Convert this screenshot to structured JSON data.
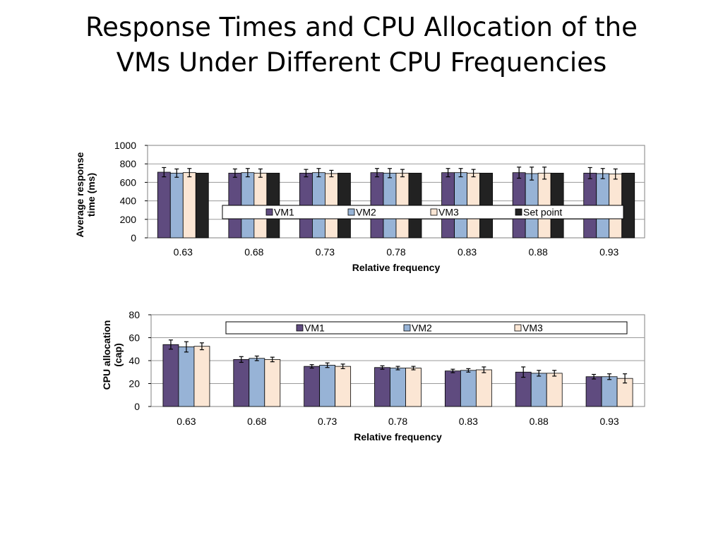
{
  "slide": {
    "title_line1": "Response Times and CPU Allocation of the",
    "title_line2": "VMs Under Different CPU Frequencies"
  },
  "colors": {
    "vm1": "#5f4b7f",
    "vm2": "#97b3d6",
    "vm3": "#fbe6d4",
    "setpoint": "#222222",
    "grid": "#9a9a9a"
  },
  "chart_data": [
    {
      "type": "bar",
      "xlabel": "Relative frequency",
      "ylabel_line1": "Average response",
      "ylabel_line2": "time (ms)",
      "ylim": [
        0,
        1000
      ],
      "yticks": [
        "0",
        "200",
        "400",
        "600",
        "800",
        "1000"
      ],
      "grid": true,
      "legend": "inside-center",
      "categories": [
        "0.63",
        "0.68",
        "0.73",
        "0.78",
        "0.83",
        "0.88",
        "0.93"
      ],
      "series": [
        {
          "name": "VM1",
          "color": "#5f4b7f",
          "values": [
            710,
            700,
            700,
            705,
            705,
            705,
            700
          ],
          "errors": [
            50,
            45,
            40,
            45,
            45,
            60,
            60
          ]
        },
        {
          "name": "VM2",
          "color": "#97b3d6",
          "values": [
            700,
            705,
            705,
            700,
            705,
            695,
            695
          ],
          "errors": [
            45,
            45,
            45,
            50,
            45,
            70,
            55
          ]
        },
        {
          "name": "VM3",
          "color": "#fbe6d4",
          "values": [
            705,
            700,
            695,
            700,
            700,
            700,
            690
          ],
          "errors": [
            45,
            45,
            35,
            40,
            40,
            65,
            55
          ]
        },
        {
          "name": "Set point",
          "color": "#222222",
          "values": [
            700,
            700,
            700,
            700,
            700,
            700,
            700
          ],
          "errors": [
            0,
            0,
            0,
            0,
            0,
            0,
            0
          ]
        }
      ]
    },
    {
      "type": "bar",
      "xlabel": "Relative frequency",
      "ylabel_line1": "CPU allocation",
      "ylabel_line2": "(cap)",
      "ylim": [
        0,
        80
      ],
      "yticks": [
        "0",
        "20",
        "40",
        "60",
        "80"
      ],
      "grid": true,
      "legend": "top-center",
      "categories": [
        "0.63",
        "0.68",
        "0.73",
        "0.78",
        "0.83",
        "0.88",
        "0.93"
      ],
      "series": [
        {
          "name": "VM1",
          "color": "#5f4b7f",
          "values": [
            54,
            41,
            35,
            34,
            31,
            30,
            26
          ],
          "errors": [
            4,
            2.5,
            1.5,
            1.5,
            1.5,
            4.5,
            2
          ]
        },
        {
          "name": "VM2",
          "color": "#97b3d6",
          "values": [
            52,
            42,
            36,
            33.5,
            31.5,
            29,
            26
          ],
          "errors": [
            4.5,
            2,
            2,
            1.5,
            1.5,
            2.5,
            2.5
          ]
        },
        {
          "name": "VM3",
          "color": "#fbe6d4",
          "values": [
            52.5,
            41,
            35,
            33.5,
            32,
            29,
            24.5
          ],
          "errors": [
            3,
            2,
            2,
            1.5,
            2.5,
            2.5,
            4
          ]
        }
      ]
    }
  ]
}
